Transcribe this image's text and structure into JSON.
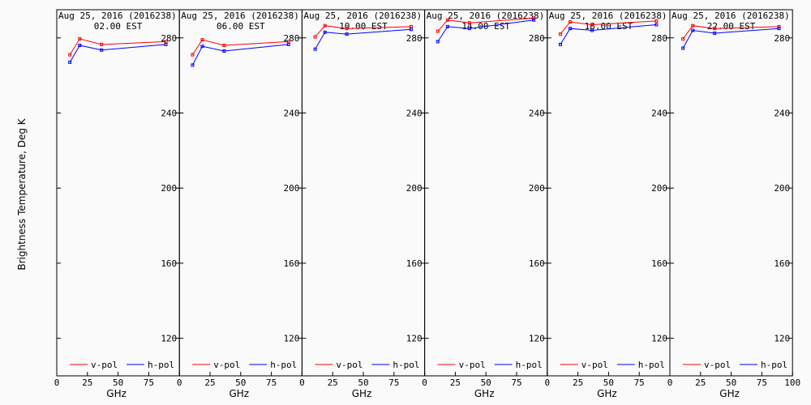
{
  "figure": {
    "ylabel": "Brightness Temperature, Deg K",
    "xlabel": "GHz",
    "background": "#fafafa",
    "line_colors": {
      "v_pol": "#ff0000",
      "h_pol": "#0000ff"
    }
  },
  "chart_data": [
    {
      "type": "line",
      "title": "Aug 25, 2016 (2016238)",
      "subtitle": "02.00 EST",
      "xlabel": "GHz",
      "ylabel": "Brightness Temperature, Deg K",
      "xlim": [
        0,
        100
      ],
      "ylim": [
        100,
        295
      ],
      "xticks": [
        "0",
        "25",
        "50",
        "75",
        "100"
      ],
      "yticks": [
        "120",
        "160",
        "200",
        "240",
        "280"
      ],
      "legend": "bottom",
      "series": [
        {
          "name": "v-pol",
          "color": "#ff0000",
          "x": [
            10.7,
            18.7,
            36.5,
            89.0
          ],
          "y": [
            271,
            279.5,
            276.5,
            278
          ]
        },
        {
          "name": "h-pol",
          "color": "#0000ff",
          "x": [
            10.7,
            18.7,
            36.5,
            89.0
          ],
          "y": [
            267,
            276,
            273.5,
            276.5
          ]
        }
      ]
    },
    {
      "type": "line",
      "title": "Aug 25, 2016 (2016238)",
      "subtitle": "06.00 EST",
      "xlabel": "GHz",
      "ylabel": "",
      "xlim": [
        0,
        100
      ],
      "ylim": [
        100,
        295
      ],
      "xticks": [
        "0",
        "25",
        "50",
        "75",
        "100"
      ],
      "yticks": [
        "120",
        "160",
        "200",
        "240",
        "280"
      ],
      "legend": "bottom",
      "series": [
        {
          "name": "v-pol",
          "color": "#ff0000",
          "x": [
            10.7,
            18.7,
            36.5,
            89.0
          ],
          "y": [
            271,
            279,
            276,
            278
          ]
        },
        {
          "name": "h-pol",
          "color": "#0000ff",
          "x": [
            10.7,
            18.7,
            36.5,
            89.0
          ],
          "y": [
            265.5,
            275.5,
            273,
            276.5
          ]
        }
      ]
    },
    {
      "type": "line",
      "title": "Aug 25, 2016 (2016238)",
      "subtitle": "10.00 EST",
      "xlabel": "GHz",
      "ylabel": "",
      "xlim": [
        0,
        100
      ],
      "ylim": [
        100,
        295
      ],
      "xticks": [
        "0",
        "25",
        "50",
        "75",
        "100"
      ],
      "yticks": [
        "120",
        "160",
        "200",
        "240",
        "280"
      ],
      "legend": "bottom",
      "series": [
        {
          "name": "v-pol",
          "color": "#ff0000",
          "x": [
            10.7,
            18.7,
            36.5,
            89.0
          ],
          "y": [
            280.5,
            286.5,
            285,
            286
          ]
        },
        {
          "name": "h-pol",
          "color": "#0000ff",
          "x": [
            10.7,
            18.7,
            36.5,
            89.0
          ],
          "y": [
            274,
            283,
            282,
            284.5
          ]
        }
      ]
    },
    {
      "type": "line",
      "title": "Aug 25, 2016 (2016238)",
      "subtitle": "14.00 EST",
      "xlabel": "GHz",
      "ylabel": "",
      "xlim": [
        0,
        100
      ],
      "ylim": [
        100,
        295
      ],
      "xticks": [
        "0",
        "25",
        "50",
        "75",
        "100"
      ],
      "yticks": [
        "120",
        "160",
        "200",
        "240",
        "280"
      ],
      "legend": "bottom",
      "series": [
        {
          "name": "v-pol",
          "color": "#ff0000",
          "x": [
            10.7,
            18.7,
            36.5,
            89.0
          ],
          "y": [
            283.5,
            289.5,
            288,
            290.5
          ]
        },
        {
          "name": "h-pol",
          "color": "#0000ff",
          "x": [
            10.7,
            18.7,
            36.5,
            89.0
          ],
          "y": [
            278,
            286,
            285,
            289.5
          ]
        }
      ]
    },
    {
      "type": "line",
      "title": "Aug 25, 2016 (2016238)",
      "subtitle": "18.00 EST",
      "xlabel": "GHz",
      "ylabel": "",
      "xlim": [
        0,
        100
      ],
      "ylim": [
        100,
        295
      ],
      "xticks": [
        "0",
        "25",
        "50",
        "75",
        "100"
      ],
      "yticks": [
        "120",
        "160",
        "200",
        "240",
        "280"
      ],
      "legend": "bottom",
      "series": [
        {
          "name": "v-pol",
          "color": "#ff0000",
          "x": [
            10.7,
            18.7,
            36.5,
            89.0
          ],
          "y": [
            282,
            288.5,
            287,
            289
          ]
        },
        {
          "name": "h-pol",
          "color": "#0000ff",
          "x": [
            10.7,
            18.7,
            36.5,
            89.0
          ],
          "y": [
            276.5,
            285,
            284,
            287
          ]
        }
      ]
    },
    {
      "type": "line",
      "title": "Aug 25, 2016 (2016238)",
      "subtitle": "22.00 EST",
      "xlabel": "GHz",
      "ylabel": "",
      "xlim": [
        0,
        100
      ],
      "ylim": [
        100,
        295
      ],
      "xticks": [
        "0",
        "25",
        "50",
        "75",
        "100"
      ],
      "yticks": [
        "120",
        "160",
        "200",
        "240",
        "280"
      ],
      "legend": "bottom",
      "series": [
        {
          "name": "v-pol",
          "color": "#ff0000",
          "x": [
            10.7,
            18.7,
            36.5,
            89.0
          ],
          "y": [
            279.5,
            286.5,
            285,
            286
          ]
        },
        {
          "name": "h-pol",
          "color": "#0000ff",
          "x": [
            10.7,
            18.7,
            36.5,
            89.0
          ],
          "y": [
            274.5,
            284,
            282.5,
            285
          ]
        }
      ]
    }
  ]
}
